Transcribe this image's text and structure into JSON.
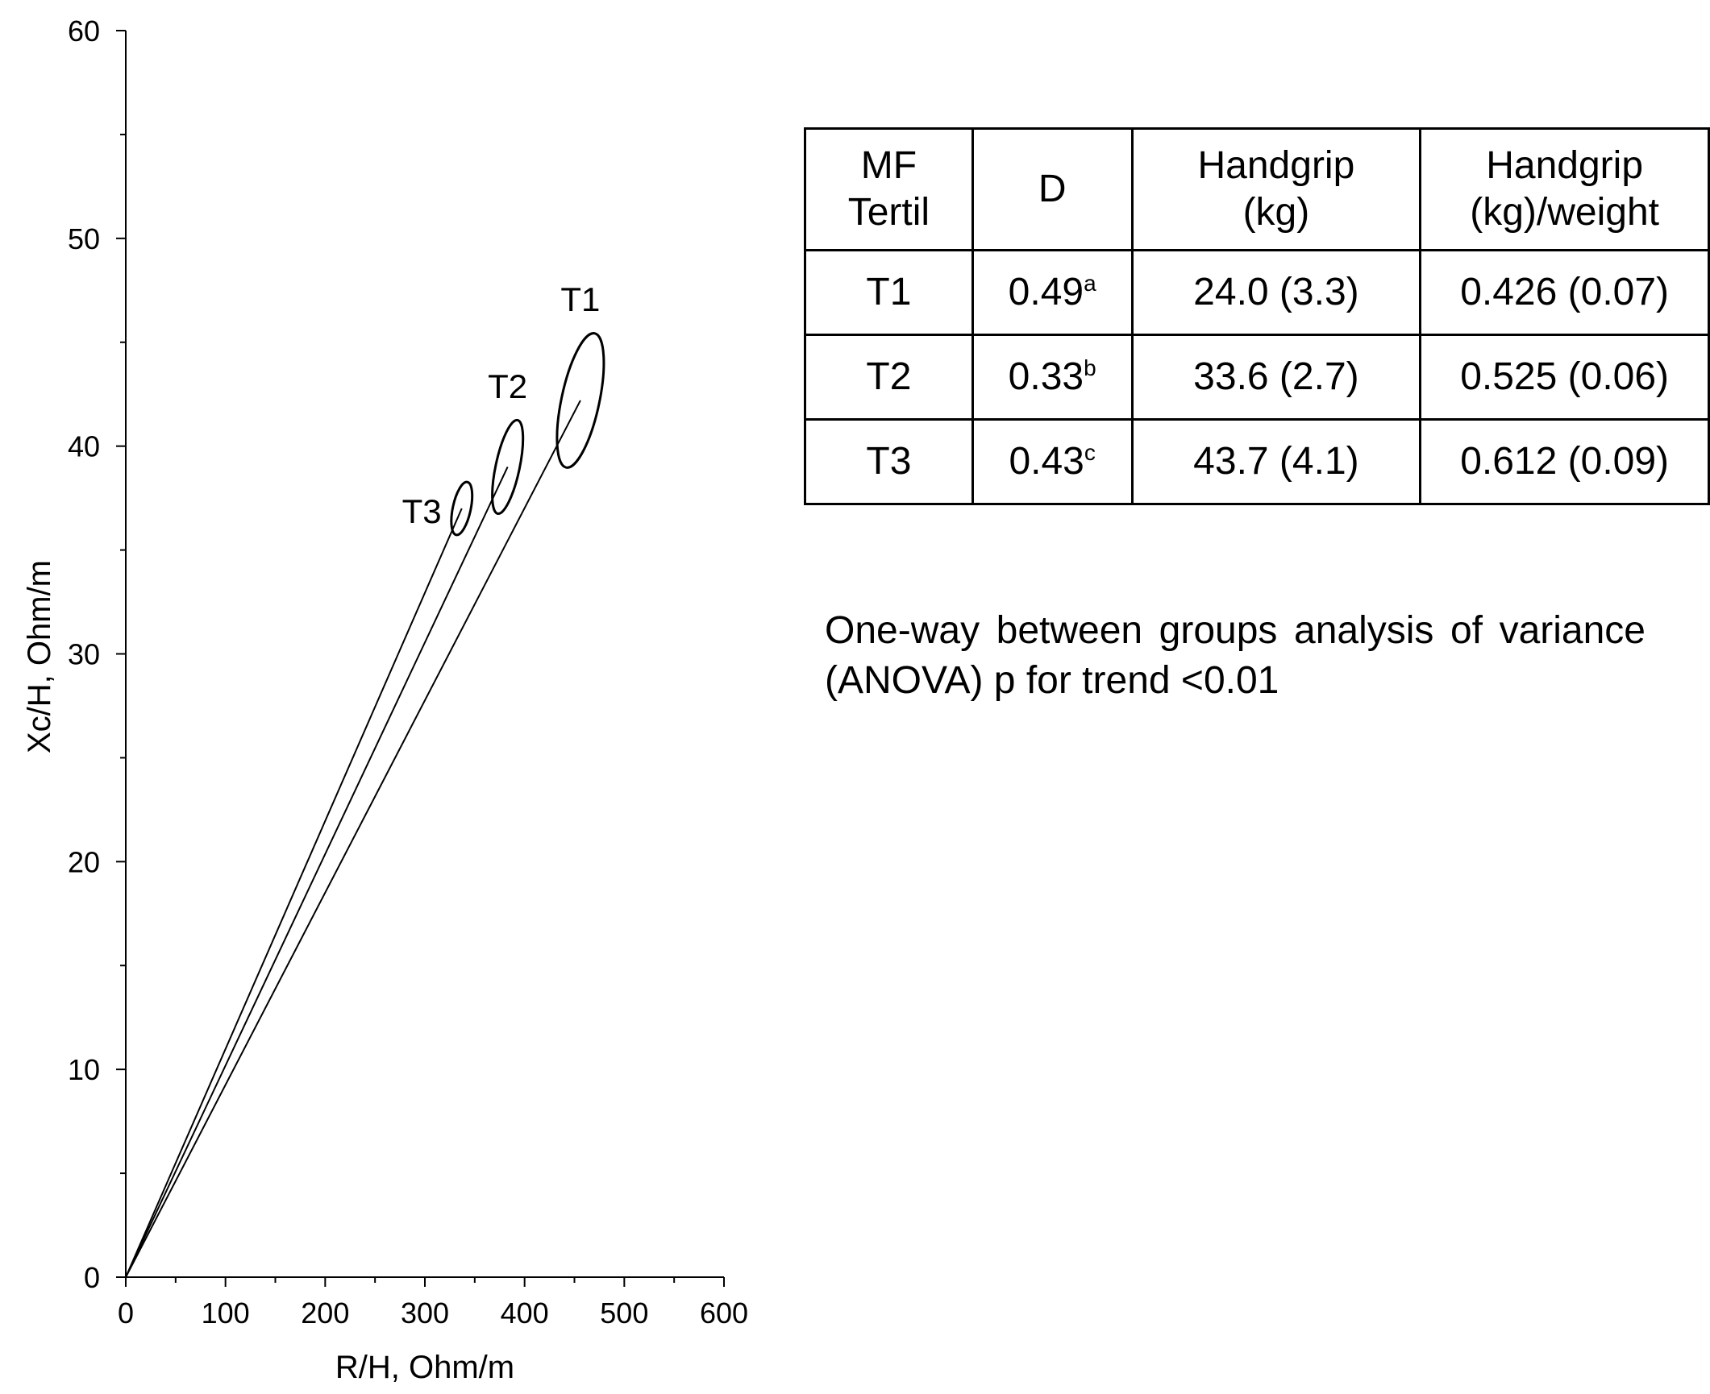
{
  "chart_data": {
    "type": "scatter",
    "title": "",
    "xlabel": "R/H, Ohm/m",
    "ylabel": "Xc/H, Ohm/m",
    "xlim": [
      0,
      600
    ],
    "ylim": [
      0,
      60
    ],
    "x_ticks": [
      0,
      100,
      200,
      300,
      400,
      500,
      600
    ],
    "y_ticks": [
      0,
      10,
      20,
      30,
      40,
      50,
      60
    ],
    "grid": false,
    "series": [
      {
        "name": "T1",
        "x": 456,
        "y": 42.2,
        "rx": 19,
        "ry": 3.3,
        "tilt_deg": 12
      },
      {
        "name": "T2",
        "x": 383,
        "y": 39.0,
        "rx": 12,
        "ry": 2.3,
        "tilt_deg": 12
      },
      {
        "name": "T3",
        "x": 337,
        "y": 37.0,
        "rx": 9,
        "ry": 1.3,
        "tilt_deg": 12
      }
    ]
  },
  "table": {
    "headers": [
      "MF\nTertil",
      "D",
      "Handgrip\n(kg)",
      "Handgrip\n(kg)/weight"
    ],
    "rows": [
      {
        "tertil": "T1",
        "d": "0.49",
        "d_sup": "a",
        "handgrip": "24.0 (3.3)",
        "handgrip_weight": "0.426 (0.07)"
      },
      {
        "tertil": "T2",
        "d": "0.33",
        "d_sup": "b",
        "handgrip": "33.6 (2.7)",
        "handgrip_weight": "0.525 (0.06)"
      },
      {
        "tertil": "T3",
        "d": "0.43",
        "d_sup": "c",
        "handgrip": "43.7 (4.1)",
        "handgrip_weight": "0.612 (0.09)"
      }
    ]
  },
  "note": "One-way between groups analysis of variance (ANOVA) p for trend <0.01"
}
